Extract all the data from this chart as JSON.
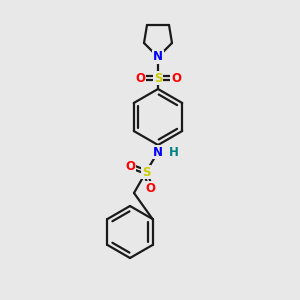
{
  "background_color": "#e8e8e8",
  "bond_color": "#1a1a1a",
  "atom_colors": {
    "N": "#0000ff",
    "S": "#cccc00",
    "O": "#ff0000",
    "H": "#008080",
    "C": "#1a1a1a"
  },
  "figsize": [
    3.0,
    3.0
  ],
  "dpi": 100,
  "lw": 1.6,
  "fontsize": 8.5
}
